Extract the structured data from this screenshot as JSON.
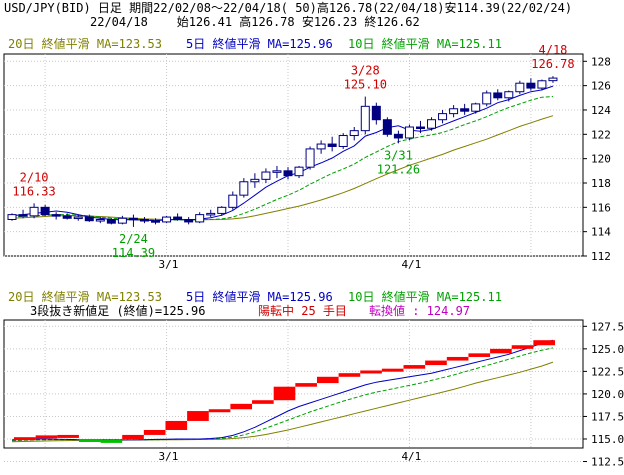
{
  "header": {
    "line1": "USD/JPY(BID) 日足 期間22/02/08～22/04/18( 50)高126.78(22/04/18)安114.39(22/02/24)",
    "line2": "22/04/18    始126.41 高126.78 安126.23 終126.62"
  },
  "top_panel": {
    "legend_ma20": "20日 終値平滑 MA=123.53",
    "legend_ma5": "5日 終値平滑 MA=125.96",
    "legend_ma10": "10日 終値平滑 MA=125.11"
  },
  "bottom_panel": {
    "legend_ma20": "20日 終値平滑 MA=123.53",
    "legend_ma5": "5日 終値平滑 MA=125.96",
    "legend_ma10": "10日 終値平滑 MA=125.11",
    "info_black": "3段抜き新値足 (終値)=125.96",
    "info_red": "陽転中 25 手目",
    "info_magenta": "転換値 : 124.97"
  },
  "colors": {
    "up_candle": "#ffffff",
    "down_candle": "#000080",
    "ma5": "#0000c0",
    "ma10": "#00a000",
    "ma20": "#808000",
    "renko_up": "#ff0000",
    "renko_down": "#00c000",
    "annotation_red": "#d00000",
    "annotation_green": "#00a000",
    "grid": "#c8c8c8"
  },
  "chart_data": [
    {
      "type": "candlestick",
      "y_ticks": [
        112,
        114,
        116,
        118,
        120,
        122,
        124,
        126,
        128
      ],
      "ylim": [
        112,
        128.6
      ],
      "x_labels": [
        {
          "index": 14,
          "label": "3/1"
        },
        {
          "index": 36,
          "label": "4/1"
        }
      ],
      "annotations": [
        {
          "index": 2,
          "date": "2/10",
          "value": "116.33",
          "color": "red",
          "pos": "above"
        },
        {
          "index": 11,
          "date": "2/24",
          "value": "114.39",
          "color": "green",
          "pos": "below"
        },
        {
          "index": 32,
          "date": "3/28",
          "value": "125.10",
          "color": "red",
          "pos": "above"
        },
        {
          "index": 35,
          "date": "3/31",
          "value": "121.26",
          "color": "green",
          "pos": "below"
        },
        {
          "index": 49,
          "date": "4/18",
          "value": "126.78",
          "color": "red",
          "pos": "above"
        }
      ],
      "ohlc": [
        [
          115.0,
          115.5,
          114.9,
          115.4
        ],
        [
          115.4,
          115.8,
          115.1,
          115.3
        ],
        [
          115.3,
          116.33,
          115.1,
          116.0
        ],
        [
          116.0,
          116.2,
          115.3,
          115.4
        ],
        [
          115.4,
          115.6,
          115.0,
          115.3
        ],
        [
          115.3,
          115.5,
          115.0,
          115.1
        ],
        [
          115.1,
          115.4,
          114.9,
          115.2
        ],
        [
          115.2,
          115.4,
          114.8,
          114.9
        ],
        [
          114.9,
          115.2,
          114.7,
          115.0
        ],
        [
          115.0,
          115.1,
          114.6,
          114.7
        ],
        [
          114.7,
          115.3,
          114.6,
          115.1
        ],
        [
          115.1,
          115.4,
          114.39,
          115.0
        ],
        [
          115.0,
          115.2,
          114.7,
          114.9
        ],
        [
          114.9,
          115.1,
          114.6,
          114.8
        ],
        [
          114.8,
          115.3,
          114.7,
          115.2
        ],
        [
          115.2,
          115.5,
          114.9,
          115.0
        ],
        [
          115.0,
          115.2,
          114.6,
          114.8
        ],
        [
          114.8,
          115.6,
          114.7,
          115.4
        ],
        [
          115.4,
          115.8,
          115.2,
          115.5
        ],
        [
          115.5,
          116.1,
          115.3,
          116.0
        ],
        [
          116.0,
          117.3,
          115.8,
          117.0
        ],
        [
          117.0,
          118.4,
          116.8,
          118.1
        ],
        [
          118.1,
          118.8,
          117.6,
          118.3
        ],
        [
          118.3,
          119.2,
          118.0,
          118.9
        ],
        [
          118.9,
          119.4,
          118.4,
          119.0
        ],
        [
          119.0,
          119.3,
          118.3,
          118.6
        ],
        [
          118.6,
          119.4,
          118.4,
          119.3
        ],
        [
          119.3,
          121.0,
          119.1,
          120.8
        ],
        [
          120.8,
          121.5,
          120.4,
          121.2
        ],
        [
          121.2,
          121.8,
          120.6,
          121.0
        ],
        [
          121.0,
          122.1,
          120.8,
          121.9
        ],
        [
          121.9,
          122.6,
          121.5,
          122.3
        ],
        [
          122.3,
          125.1,
          122.0,
          124.3
        ],
        [
          124.3,
          124.6,
          122.8,
          123.2
        ],
        [
          123.2,
          123.4,
          121.8,
          122.0
        ],
        [
          122.0,
          122.3,
          121.26,
          121.7
        ],
        [
          121.7,
          122.8,
          121.5,
          122.6
        ],
        [
          122.6,
          123.1,
          122.1,
          122.5
        ],
        [
          122.5,
          123.4,
          122.3,
          123.2
        ],
        [
          123.2,
          124.0,
          122.9,
          123.7
        ],
        [
          123.7,
          124.4,
          123.4,
          124.1
        ],
        [
          124.1,
          124.5,
          123.6,
          123.9
        ],
        [
          123.9,
          124.6,
          123.7,
          124.5
        ],
        [
          124.5,
          125.6,
          124.3,
          125.4
        ],
        [
          125.4,
          125.7,
          124.8,
          125.0
        ],
        [
          125.0,
          125.6,
          124.7,
          125.5
        ],
        [
          125.5,
          126.4,
          125.3,
          126.2
        ],
        [
          126.2,
          126.6,
          125.6,
          125.8
        ],
        [
          125.8,
          126.5,
          125.6,
          126.4
        ],
        [
          126.41,
          126.78,
          126.23,
          126.62
        ]
      ],
      "ma5": [
        115.3,
        115.4,
        115.5,
        115.6,
        115.7,
        115.6,
        115.4,
        115.2,
        115.1,
        115.0,
        114.98,
        114.98,
        114.95,
        114.9,
        114.98,
        115.0,
        114.97,
        115.03,
        115.15,
        115.35,
        115.75,
        116.35,
        117.0,
        117.65,
        118.15,
        118.6,
        118.85,
        119.3,
        119.65,
        120.05,
        120.6,
        121.05,
        121.85,
        122.15,
        122.55,
        122.7,
        122.35,
        122.25,
        122.4,
        122.75,
        123.1,
        123.45,
        123.8,
        124.15,
        124.6,
        124.85,
        125.2,
        125.5,
        125.65,
        125.96
      ],
      "ma10": [
        115.2,
        115.25,
        115.3,
        115.35,
        115.4,
        115.4,
        115.35,
        115.3,
        115.2,
        115.1,
        115.05,
        115.0,
        114.98,
        114.95,
        114.95,
        114.97,
        114.97,
        114.98,
        115.0,
        115.05,
        115.2,
        115.5,
        115.85,
        116.25,
        116.65,
        117.0,
        117.4,
        117.9,
        118.35,
        118.8,
        119.15,
        119.55,
        120.1,
        120.55,
        121.0,
        121.4,
        121.6,
        121.8,
        121.95,
        122.15,
        122.45,
        122.8,
        123.1,
        123.45,
        123.85,
        124.2,
        124.5,
        124.8,
        125.05,
        125.11
      ],
      "ma20": [
        115.1,
        115.15,
        115.2,
        115.25,
        115.3,
        115.3,
        115.3,
        115.28,
        115.25,
        115.2,
        115.15,
        115.1,
        115.05,
        115.02,
        115.0,
        114.99,
        114.98,
        114.98,
        114.99,
        115.0,
        115.05,
        115.15,
        115.3,
        115.5,
        115.7,
        115.9,
        116.1,
        116.35,
        116.6,
        116.9,
        117.2,
        117.55,
        117.95,
        118.35,
        118.75,
        119.1,
        119.45,
        119.75,
        120.05,
        120.35,
        120.7,
        121.0,
        121.3,
        121.6,
        121.95,
        122.3,
        122.65,
        122.95,
        123.25,
        123.53
      ]
    },
    {
      "type": "three_line_break",
      "y_ticks": [
        112.5,
        115.0,
        117.5,
        120.0,
        122.5,
        125.0,
        127.5
      ],
      "ylim": [
        114.0,
        128.2
      ],
      "x_labels": [
        {
          "index": 14,
          "label": "3/1"
        },
        {
          "index": 36,
          "label": "4/1"
        }
      ],
      "lines": [
        {
          "dir": "up",
          "from": 115.0,
          "to": 115.2
        },
        {
          "dir": "up",
          "from": 115.2,
          "to": 115.4
        },
        {
          "dir": "up",
          "from": 115.4,
          "to": 115.45
        },
        {
          "dir": "down",
          "from": 115.0,
          "to": 114.9
        },
        {
          "dir": "down",
          "from": 114.9,
          "to": 114.82
        },
        {
          "dir": "up",
          "from": 115.0,
          "to": 115.45
        },
        {
          "dir": "up",
          "from": 115.45,
          "to": 116.0
        },
        {
          "dir": "up",
          "from": 116.0,
          "to": 117.0
        },
        {
          "dir": "up",
          "from": 117.0,
          "to": 118.1
        },
        {
          "dir": "up",
          "from": 118.1,
          "to": 118.3
        },
        {
          "dir": "up",
          "from": 118.3,
          "to": 118.9
        },
        {
          "dir": "up",
          "from": 118.9,
          "to": 119.3
        },
        {
          "dir": "up",
          "from": 119.3,
          "to": 120.8
        },
        {
          "dir": "up",
          "from": 120.8,
          "to": 121.2
        },
        {
          "dir": "up",
          "from": 121.2,
          "to": 121.9
        },
        {
          "dir": "up",
          "from": 121.9,
          "to": 122.3
        },
        {
          "dir": "up",
          "from": 122.3,
          "to": 122.6
        },
        {
          "dir": "up",
          "from": 122.6,
          "to": 122.8
        },
        {
          "dir": "up",
          "from": 122.8,
          "to": 123.2
        },
        {
          "dir": "up",
          "from": 123.2,
          "to": 123.7
        },
        {
          "dir": "up",
          "from": 123.7,
          "to": 124.1
        },
        {
          "dir": "up",
          "from": 124.1,
          "to": 124.5
        },
        {
          "dir": "up",
          "from": 124.5,
          "to": 125.0
        },
        {
          "dir": "up",
          "from": 125.0,
          "to": 125.4
        },
        {
          "dir": "up",
          "from": 125.4,
          "to": 125.96
        }
      ],
      "ma5": [
        114.9,
        114.95,
        115.0,
        115.0,
        114.98,
        114.95,
        114.92,
        114.9,
        114.9,
        114.9,
        114.9,
        114.9,
        114.92,
        114.95,
        114.98,
        115.0,
        115.0,
        115.0,
        115.05,
        115.15,
        115.4,
        115.8,
        116.3,
        116.9,
        117.5,
        118.1,
        118.6,
        119.0,
        119.4,
        119.8,
        120.2,
        120.6,
        121.0,
        121.3,
        121.5,
        121.7,
        121.9,
        122.1,
        122.3,
        122.6,
        122.9,
        123.2,
        123.5,
        123.8,
        124.1,
        124.4,
        124.8,
        125.2,
        125.6,
        125.96
      ],
      "ma10": [
        114.8,
        114.85,
        114.9,
        114.92,
        114.93,
        114.93,
        114.92,
        114.9,
        114.9,
        114.9,
        114.9,
        114.9,
        114.9,
        114.92,
        114.94,
        114.96,
        114.97,
        114.98,
        115.0,
        115.05,
        115.2,
        115.45,
        115.8,
        116.2,
        116.65,
        117.1,
        117.55,
        118.0,
        118.4,
        118.8,
        119.2,
        119.55,
        119.9,
        120.2,
        120.45,
        120.7,
        120.95,
        121.2,
        121.5,
        121.8,
        122.1,
        122.45,
        122.8,
        123.15,
        123.5,
        123.85,
        124.2,
        124.55,
        124.85,
        125.11
      ],
      "ma20": [
        114.7,
        114.72,
        114.75,
        114.78,
        114.8,
        114.82,
        114.84,
        114.85,
        114.86,
        114.87,
        114.88,
        114.89,
        114.9,
        114.9,
        114.91,
        114.92,
        114.93,
        114.94,
        114.95,
        114.98,
        115.05,
        115.15,
        115.3,
        115.5,
        115.75,
        116.0,
        116.3,
        116.6,
        116.9,
        117.2,
        117.5,
        117.8,
        118.1,
        118.4,
        118.7,
        119.0,
        119.3,
        119.6,
        119.9,
        120.2,
        120.5,
        120.85,
        121.2,
        121.5,
        121.8,
        122.1,
        122.4,
        122.75,
        123.1,
        123.53
      ]
    }
  ]
}
